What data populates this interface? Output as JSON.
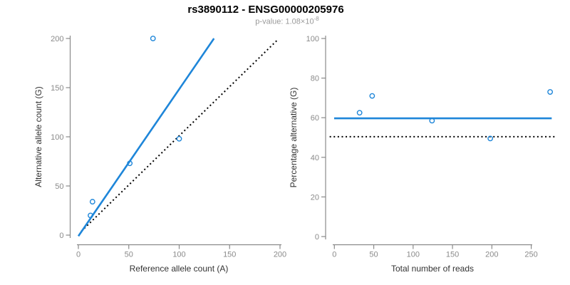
{
  "header": {
    "title": "rs3890112 - ENSG00000205976",
    "pvalue_label": "p-value: 1.08×10",
    "pvalue_exponent": "-8"
  },
  "colors": {
    "accent_blue": "#1E86D9",
    "identity_black": "#000000",
    "axis_grey": "#8a8a8a",
    "tick_label_grey": "#8a8a8a",
    "axis_title_dark": "#333333",
    "title_black": "#000000",
    "subtitle_grey": "#9a9a9a"
  },
  "chart_data": [
    {
      "id": "allele-counts",
      "type": "scatter",
      "xlabel": "Reference allele count (A)",
      "ylabel": "Alternative allele count (G)",
      "xlim": [
        0,
        200
      ],
      "ylim": [
        0,
        200
      ],
      "xticks": [
        0,
        50,
        100,
        150,
        200
      ],
      "yticks": [
        0,
        50,
        100,
        150,
        200
      ],
      "grid": false,
      "points": [
        [
          12,
          20
        ],
        [
          14,
          34
        ],
        [
          51,
          73
        ],
        [
          74,
          200
        ],
        [
          100,
          98
        ]
      ],
      "lines": [
        {
          "name": "identity-line",
          "style": "dotted",
          "color": "#000000",
          "from": [
            3,
            4
          ],
          "to": [
            198,
            199
          ]
        },
        {
          "name": "fit-line",
          "style": "solid",
          "color": "#1E86D9",
          "from": [
            0,
            -1
          ],
          "to": [
            134.5,
            200
          ]
        }
      ]
    },
    {
      "id": "pct-reads",
      "type": "scatter",
      "xlabel": "Total number of reads",
      "ylabel": "Percentage alternative (G)",
      "xlim": [
        0,
        280
      ],
      "ylim": [
        0,
        100
      ],
      "xticks": [
        0,
        50,
        100,
        150,
        200,
        250
      ],
      "yticks": [
        0,
        20,
        40,
        60,
        80,
        100
      ],
      "grid": false,
      "points": [
        [
          32,
          62.5
        ],
        [
          48,
          71
        ],
        [
          124,
          58.5
        ],
        [
          198,
          49.5
        ],
        [
          274,
          73
        ]
      ],
      "lines": [
        {
          "name": "expected-line",
          "style": "dotted",
          "color": "#000000",
          "from": [
            -6,
            50.4
          ],
          "to": [
            281,
            50.4
          ]
        },
        {
          "name": "fit-line",
          "style": "solid",
          "color": "#1E86D9",
          "from": [
            -0.3,
            59.7
          ],
          "to": [
            276,
            59.7
          ]
        }
      ]
    }
  ]
}
